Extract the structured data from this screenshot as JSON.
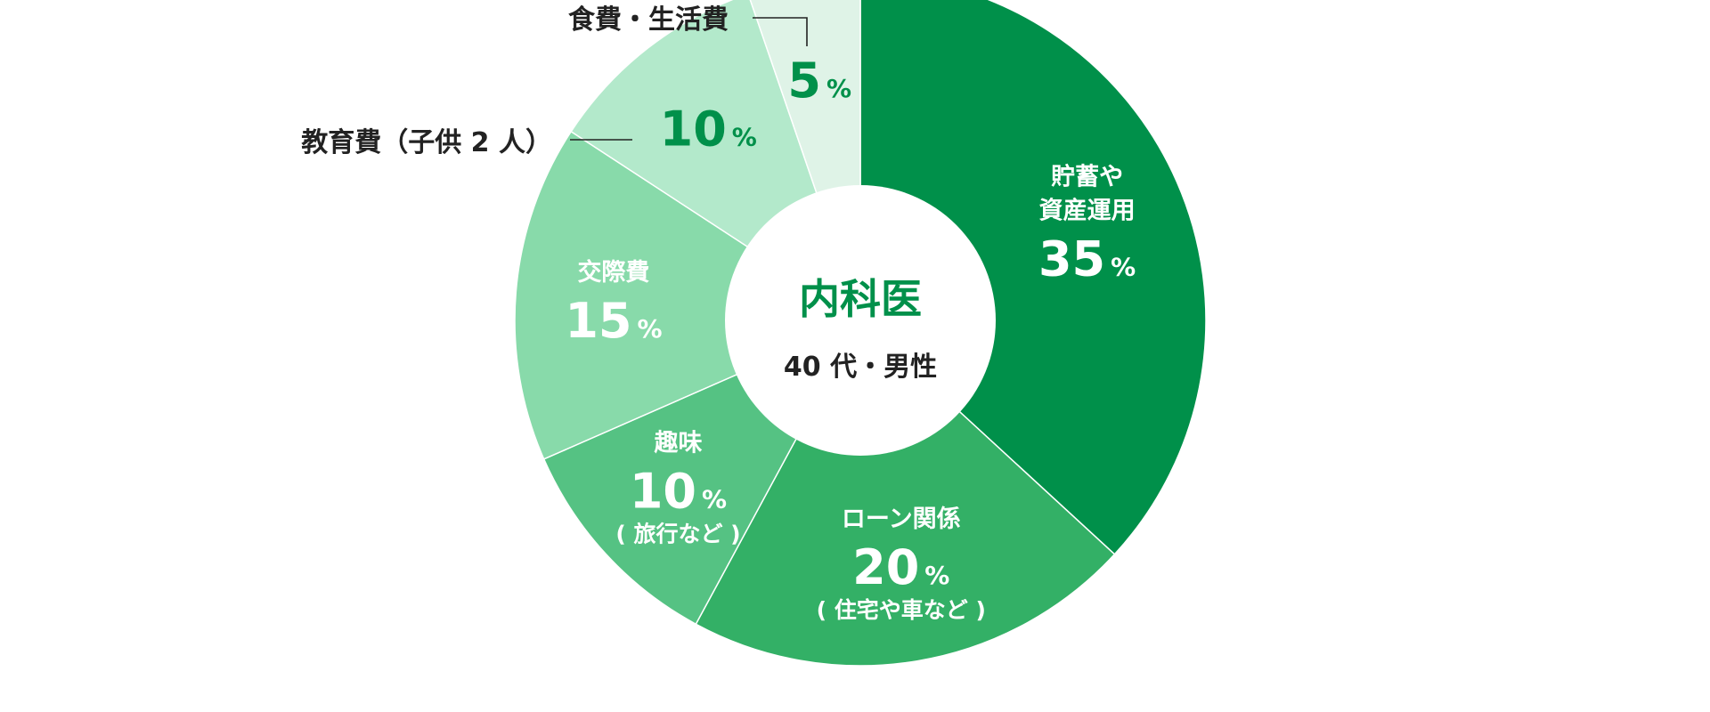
{
  "chart_data": {
    "type": "pie",
    "title": "内科医",
    "subtitle": "40 代・男性",
    "percent_sign": "%",
    "slices": [
      {
        "label_lines": [
          "貯蓄や",
          "資産運用"
        ],
        "value": 35,
        "note": "",
        "color": "#00904A",
        "text_color": "#ffffff"
      },
      {
        "label_lines": [
          "ローン関係"
        ],
        "value": 20,
        "note": "( 住宅や車など )",
        "color": "#33B066",
        "text_color": "#ffffff"
      },
      {
        "label_lines": [
          "趣味"
        ],
        "value": 10,
        "note": "( 旅行など )",
        "color": "#55C283",
        "text_color": "#ffffff"
      },
      {
        "label_lines": [
          "交際費"
        ],
        "value": 15,
        "note": "",
        "color": "#88DAAA",
        "text_color": "#ffffff"
      },
      {
        "label_lines": [],
        "outside_label": "教育費（子供 2 人）",
        "value": 10,
        "note": "",
        "color": "#B3E9CB",
        "text_color": "#00904A"
      },
      {
        "label_lines": [],
        "outside_label": "食費・生活費",
        "value": 5,
        "note": "",
        "color": "#DFF3E7",
        "text_color": "#00904A"
      }
    ]
  }
}
